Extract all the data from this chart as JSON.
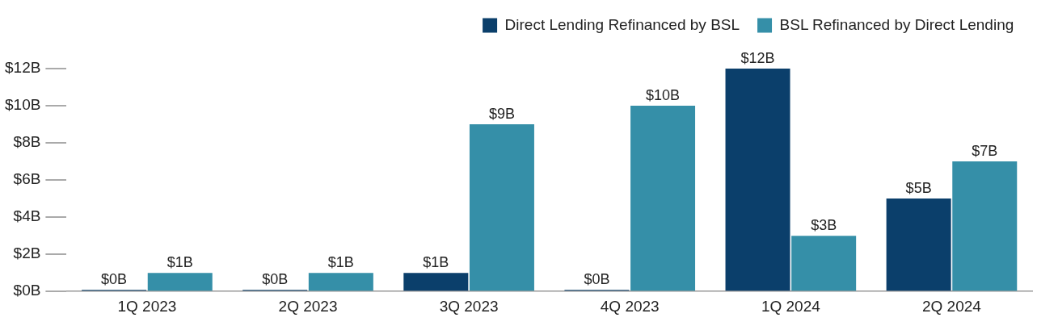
{
  "chart_data": {
    "type": "bar",
    "categories": [
      "1Q 2023",
      "2Q 2023",
      "3Q 2023",
      "4Q 2023",
      "1Q 2024",
      "2Q 2024"
    ],
    "series": [
      {
        "name": "Direct Lending Refinanced by BSL",
        "color": "#0b3f6b",
        "values": [
          0,
          0,
          1,
          0,
          12,
          5
        ],
        "value_labels": [
          "$0B",
          "$0B",
          "$1B",
          "$0B",
          "$12B",
          "$5B"
        ]
      },
      {
        "name": "BSL Refinanced by Direct Lending",
        "color": "#358fa8",
        "values": [
          1,
          1,
          9,
          10,
          3,
          7
        ],
        "value_labels": [
          "$1B",
          "$1B",
          "$9B",
          "$10B",
          "$3B",
          "$7B"
        ]
      }
    ],
    "ylim": [
      0,
      12
    ],
    "yticks": [
      {
        "value": 0,
        "label": "$0B"
      },
      {
        "value": 2,
        "label": "$2B"
      },
      {
        "value": 4,
        "label": "$4B"
      },
      {
        "value": 6,
        "label": "$6B"
      },
      {
        "value": 8,
        "label": "$8B"
      },
      {
        "value": 10,
        "label": "$10B"
      },
      {
        "value": 12,
        "label": "$12B"
      }
    ],
    "grid": false,
    "legend": "top right"
  }
}
